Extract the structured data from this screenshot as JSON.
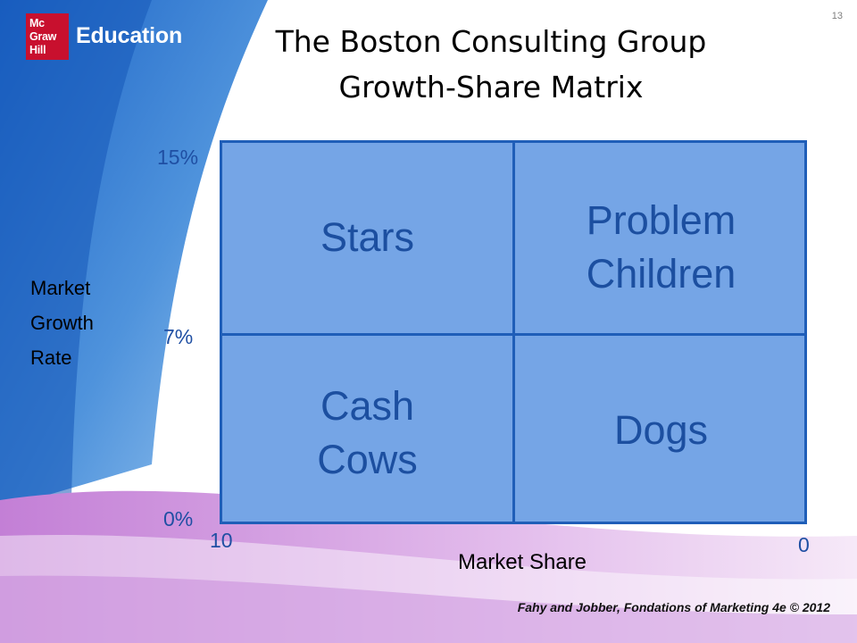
{
  "logo": {
    "mark_lines": [
      "Mc",
      "Graw",
      "Hill"
    ],
    "text": "Education"
  },
  "page_number": "13",
  "title": {
    "line1": "The Boston Consulting Group",
    "line2": "Growth-Share Matrix"
  },
  "y_axis": {
    "label_lines": [
      "Market",
      "Growth",
      "Rate"
    ],
    "ticks": [
      "15%",
      "7%",
      "0%"
    ]
  },
  "x_axis": {
    "label": "Market Share",
    "ticks": [
      "10",
      "0"
    ]
  },
  "quadrants": {
    "top_left": {
      "lines": [
        "Stars"
      ]
    },
    "top_right": {
      "lines": [
        "Problem",
        "Children"
      ]
    },
    "bottom_left": {
      "lines": [
        "Cash",
        "Cows"
      ]
    },
    "bottom_right": {
      "lines": [
        "Dogs"
      ]
    }
  },
  "footer": {
    "credit": "Fahy and Jobber, Fondations of Marketing 4e © 2012"
  },
  "colors": {
    "matrix_fill": "#75a5e6",
    "matrix_border": "#1f5eb8",
    "label_blue": "#1c4fa0",
    "logo_red": "#c8102e"
  }
}
